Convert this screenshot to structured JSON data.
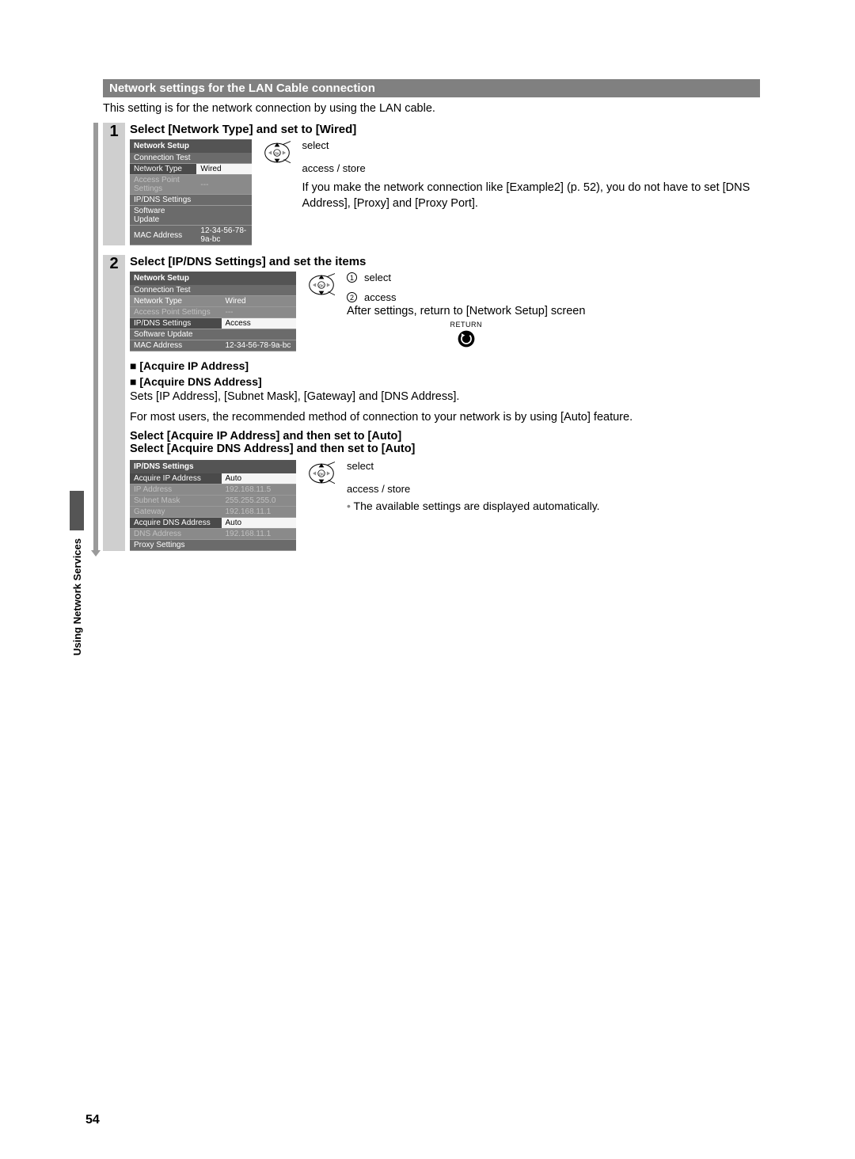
{
  "header": "Network settings for the LAN Cable connection",
  "intro": "This setting is for the network connection by using the LAN cable.",
  "side_tab": "Using Network Services",
  "page_number": "54",
  "step1": {
    "num": "1",
    "title": "Select [Network Type] and set to [Wired]",
    "menu_title": "Network Setup",
    "rows": [
      {
        "label": "Connection Test",
        "value": "",
        "style": "dark"
      },
      {
        "label": "Network Type",
        "value": "Wired",
        "style": "sel"
      },
      {
        "label": "Access Point Settings",
        "value": "---",
        "style": "disabled"
      },
      {
        "label": "IP/DNS Settings",
        "value": "",
        "style": "dark"
      },
      {
        "label": "Software Update",
        "value": "",
        "style": "dark"
      },
      {
        "label": "MAC Address",
        "value": "12-34-56-78-9a-bc",
        "style": "dark"
      }
    ],
    "label_select": "select",
    "label_access": "access / store",
    "note": "If you make the network connection like [Example2] (p. 52), you do not have to set [DNS Address], [Proxy] and [Proxy Port]."
  },
  "step2": {
    "num": "2",
    "title": "Select [IP/DNS Settings] and set the items",
    "menu_title": "Network Setup",
    "rows": [
      {
        "label": "Connection Test",
        "value": "",
        "style": "dark"
      },
      {
        "label": "Network Type",
        "value": "Wired",
        "style": "mid"
      },
      {
        "label": "Access Point Settings",
        "value": "---",
        "style": "disabled"
      },
      {
        "label": "IP/DNS Settings",
        "value": "Access",
        "style": "hl"
      },
      {
        "label": "Software Update",
        "value": "",
        "style": "dark"
      },
      {
        "label": "MAC Address",
        "value": "12-34-56-78-9a-bc",
        "style": "dark"
      }
    ],
    "label_select": "select",
    "label_access": "access",
    "note": "After settings, return to [Network Setup] screen",
    "return_label": "RETURN",
    "sub1": "[Acquire IP Address]",
    "sub2": "[Acquire DNS Address]",
    "para1": "Sets [IP Address], [Subnet Mask], [Gateway] and [DNS Address].",
    "para2": "For most users, the recommended method of connection to your network is by using [Auto] feature.",
    "sel1": "Select [Acquire IP Address] and then set to [Auto]",
    "sel2": "Select [Acquire DNS Address] and then set to [Auto]",
    "menu2_title": "IP/DNS Settings",
    "rows2": [
      {
        "label": "Acquire IP Address",
        "value": "Auto",
        "style": "sel"
      },
      {
        "label": "IP Address",
        "value": "192.168.11.5",
        "style": "disabled"
      },
      {
        "label": "Subnet Mask",
        "value": "255.255.255.0",
        "style": "disabled"
      },
      {
        "label": "Gateway",
        "value": "192.168.11.1",
        "style": "disabled"
      },
      {
        "label": "Acquire DNS Address",
        "value": "Auto",
        "style": "sel"
      },
      {
        "label": "DNS Address",
        "value": "192.168.11.1",
        "style": "disabled"
      },
      {
        "label": "Proxy Settings",
        "value": "",
        "style": "dark"
      }
    ],
    "label_select2": "select",
    "label_access2": "access / store",
    "bullet_note": "The available settings are displayed automatically."
  }
}
